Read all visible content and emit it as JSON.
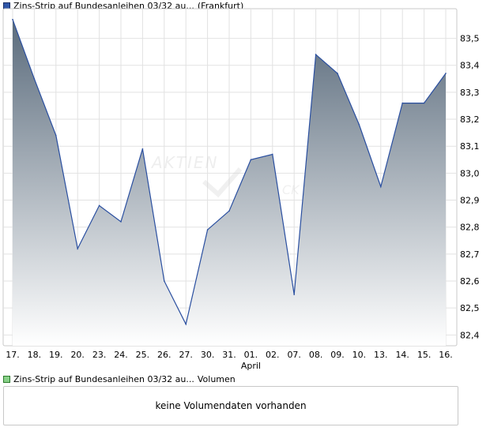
{
  "legend": {
    "price_label": "Zins-Strip auf Bundesanleihen 03/32 au...",
    "price_exchange": "(Frankfurt)",
    "volume_label": "Zins-Strip auf Bundesanleihen 03/32 au...",
    "volume_suffix": "Volumen"
  },
  "volume_panel": {
    "message": "keine Volumendaten vorhanden"
  },
  "colors": {
    "line": "#2a4fa0",
    "area_top": "#5a6b7c",
    "area_bottom": "#ffffff",
    "grid": "#e2e2e2"
  },
  "chart_data": {
    "type": "area",
    "categories": [
      "17.",
      "18.",
      "19.",
      "20.",
      "23.",
      "24.",
      "25.",
      "26.",
      "27.",
      "30.",
      "31.",
      "01.",
      "02.",
      "07.",
      "08.",
      "09.",
      "10.",
      "13.",
      "14.",
      "15.",
      "16."
    ],
    "month_label": "April",
    "month_label_at": "01.",
    "values": [
      83.57,
      83.35,
      83.14,
      82.72,
      82.88,
      82.82,
      83.09,
      82.6,
      82.44,
      82.79,
      82.86,
      83.05,
      83.07,
      82.55,
      83.44,
      83.37,
      83.18,
      82.95,
      83.26,
      83.26,
      83.37
    ],
    "yticks": [
      "82,4",
      "82,5",
      "82,6",
      "82,7",
      "82,8",
      "82,9",
      "83,0",
      "83,1",
      "83,2",
      "83,3",
      "83,4",
      "83,5"
    ],
    "ylim": [
      82.36,
      83.61
    ],
    "grid": true
  }
}
